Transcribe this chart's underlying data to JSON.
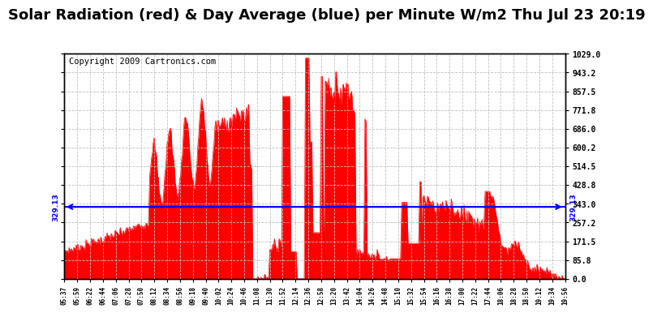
{
  "title": "Solar Radiation (red) & Day Average (blue) per Minute W/m2 Thu Jul 23 20:19",
  "copyright": "Copyright 2009 Cartronics.com",
  "avg_line": 329.13,
  "avg_label": "329.13",
  "y_max": 1029.0,
  "y_min": 0.0,
  "y_ticks": [
    0.0,
    85.8,
    171.5,
    257.2,
    343.0,
    428.8,
    514.5,
    600.2,
    686.0,
    771.8,
    857.5,
    943.2,
    1029.0
  ],
  "y_tick_labels": [
    "0.0",
    "85.8",
    "171.5",
    "257.2",
    "343.0",
    "428.8",
    "514.5",
    "600.2",
    "686.0",
    "771.8",
    "857.5",
    "943.2",
    "1029.0"
  ],
  "x_tick_labels": [
    "05:37",
    "05:59",
    "06:22",
    "06:44",
    "07:06",
    "07:28",
    "07:50",
    "08:12",
    "08:34",
    "08:56",
    "09:18",
    "09:40",
    "10:02",
    "10:24",
    "10:46",
    "11:08",
    "11:30",
    "11:52",
    "12:14",
    "12:36",
    "12:58",
    "13:20",
    "13:42",
    "14:04",
    "14:26",
    "14:48",
    "15:10",
    "15:32",
    "15:54",
    "16:16",
    "16:38",
    "17:00",
    "17:22",
    "17:44",
    "18:06",
    "18:28",
    "18:50",
    "19:12",
    "19:34",
    "19:56"
  ],
  "start_time": "05:37",
  "end_time": "19:56",
  "bg_color": "#ffffff",
  "fill_color": "#ff0000",
  "line_color": "#0000ff",
  "title_fontsize": 13,
  "copyright_fontsize": 7.5
}
